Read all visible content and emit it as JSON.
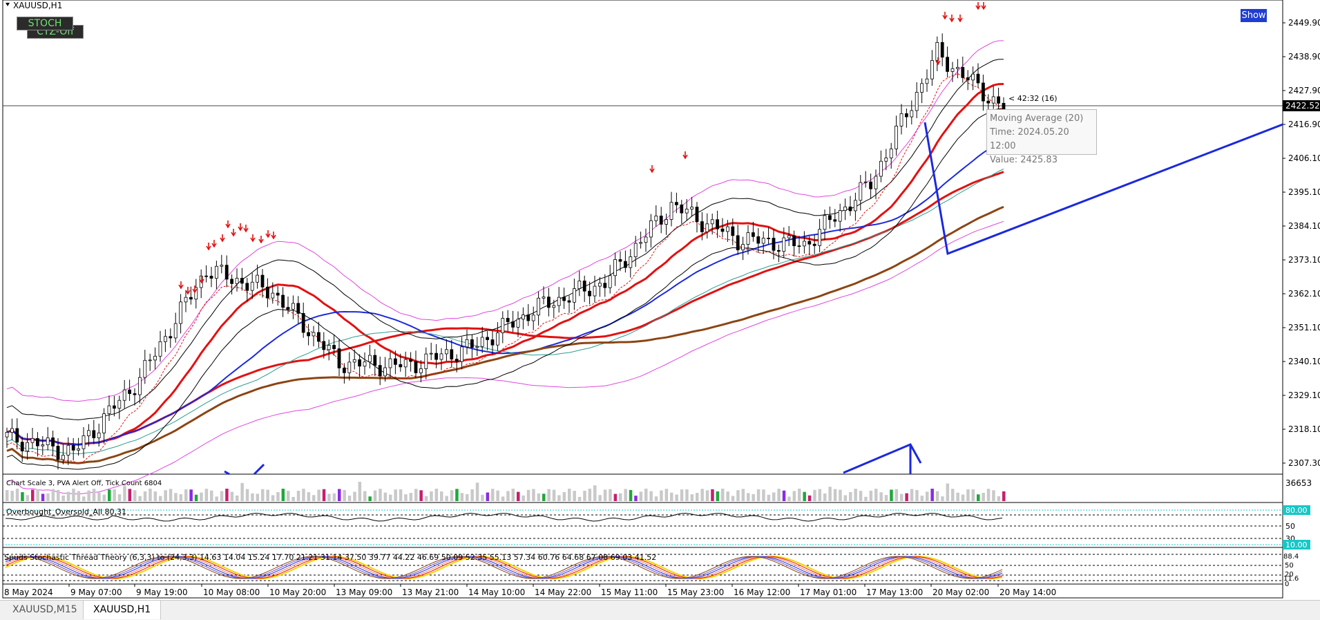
{
  "window": {
    "symbol_title": "XAUUSD,H1"
  },
  "buttons": {
    "stoch": "STOCH",
    "ctz": "CTZ-Off",
    "show": "Show"
  },
  "price_axis": {
    "labels": [
      "2449.90",
      "2438.90",
      "2427.90",
      "2416.90",
      "2406.10",
      "2395.10",
      "2384.10",
      "2373.10",
      "2362.10",
      "2351.10",
      "2340.10",
      "2329.10",
      "2318.10",
      "2307.30"
    ],
    "current_price": "2422.52"
  },
  "countdown": "< 42:32 (16)",
  "tooltip": {
    "line1": "Moving Average (20)",
    "line2": "Time: 2024.05.20 12:00",
    "line3": "Value: 2425.83"
  },
  "indicators": {
    "volume": {
      "label": "Chart Scale  3,   PVA Alert Off,   Tick Count  6804",
      "scale_max": "36653"
    },
    "obos": {
      "label": "Overbought_Oversold_All 80.31",
      "levels": [
        "80.00",
        "50",
        "30",
        "10.00"
      ]
    },
    "stoch": {
      "label": "Spuds Stochastic Thread Theory (6,3,3) to (24,3,3) 14.63 14.04 15.24 17.70 21.21 31.14 37.50 39.77 44.22 46.69 50.09 52.35 55.13 57.34 60.76 64.68 67.08 69.03 41.52",
      "axis": [
        "88.4",
        "50",
        "20",
        "11.6",
        "0"
      ]
    }
  },
  "time_axis": [
    "8 May 2024",
    "9 May 07:00",
    "9 May 19:00",
    "10 May 08:00",
    "10 May 20:00",
    "13 May 09:00",
    "13 May 21:00",
    "14 May 10:00",
    "14 May 22:00",
    "15 May 11:00",
    "15 May 23:00",
    "16 May 12:00",
    "17 May 01:00",
    "17 May 13:00",
    "20 May 02:00",
    "20 May 14:00"
  ],
  "tabs": [
    {
      "label": "XAUUSD,M15",
      "active": false
    },
    {
      "label": "XAUUSD,H1",
      "active": true
    }
  ],
  "colors": {
    "ma_red": "#e31010",
    "ma_blue": "#1a28e0",
    "envelope": "#e046e0",
    "ma_brown": "#8b4513",
    "trend_line": "#1a28e0",
    "bull_volume": "#1fa83a",
    "bear_volume": "#c81e6e",
    "stoch_yellow": "#f2d300"
  },
  "chart_data": {
    "type": "line",
    "title": "XAUUSD,H1",
    "ylim": [
      2303,
      2462
    ],
    "x": [
      "8 May 2024",
      "9 May 07:00",
      "9 May 19:00",
      "10 May 08:00",
      "10 May 20:00",
      "13 May 09:00",
      "13 May 21:00",
      "14 May 10:00",
      "14 May 22:00",
      "15 May 11:00",
      "15 May 23:00",
      "16 May 12:00",
      "17 May 01:00",
      "17 May 13:00",
      "20 May 02:00",
      "20 May 14:00"
    ],
    "series": [
      {
        "values": [
          2316,
          2311,
          2335,
          2370,
          2363,
          2340,
          2339,
          2345,
          2358,
          2366,
          2391,
          2380,
          2378,
          2398,
          2440,
          2422
        ]
      },
      {
        "name": "Moving Average (20)",
        "values": [
          2314,
          2312,
          2322,
          2365,
          2368,
          2350,
          2342,
          2346,
          2355,
          2372,
          2388,
          2386,
          2380,
          2392,
          2420,
          2426
        ]
      }
    ]
  }
}
